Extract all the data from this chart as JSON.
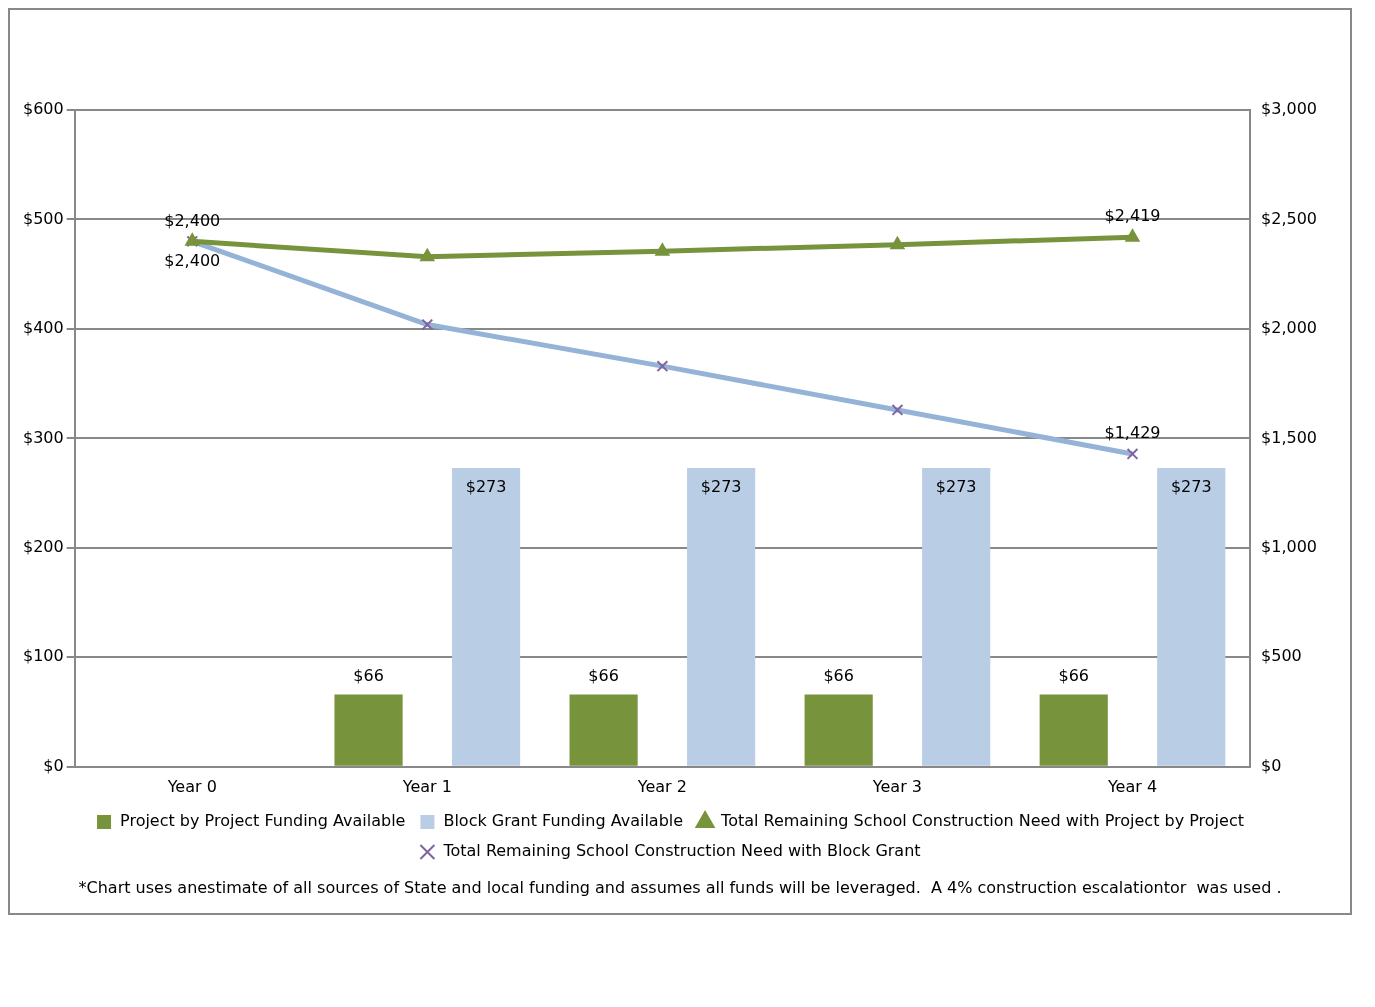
{
  "chart_data": {
    "type": "bar",
    "categories": [
      "Year 0",
      "Year 1",
      "Year 2",
      "Year 3",
      "Year 4"
    ],
    "series": [
      {
        "name": "Project by Project Funding Available",
        "color": "#77933c",
        "values": [
          null,
          66,
          66,
          66,
          66
        ],
        "value_labels": [
          null,
          "$66",
          "$66",
          "$66",
          "$66"
        ]
      },
      {
        "name": "Block Grant Funding Available",
        "color": "#b9cde5",
        "values": [
          null,
          273,
          273,
          273,
          273
        ],
        "value_labels": [
          null,
          "$273",
          "$273",
          "$273",
          "$273"
        ]
      },
      {
        "name": "Total Remaining School Construction Need with Project by Project",
        "type": "line",
        "axis": "y2",
        "marker": "triangle",
        "color": "#77933c",
        "values": [
          2400,
          2330,
          2355,
          2385,
          2419
        ],
        "value_labels": [
          "$2,400",
          null,
          null,
          null,
          "$2,419"
        ]
      },
      {
        "name": "Total Remaining School Construction Need with Block Grant",
        "type": "line",
        "axis": "y2",
        "marker": "cross",
        "color": "#95b3d7",
        "values": [
          2400,
          2020,
          1830,
          1630,
          1429
        ],
        "value_labels": [
          "$2,400",
          null,
          null,
          null,
          "$1,429"
        ]
      }
    ],
    "ylim": [
      0,
      600
    ],
    "yticks": [
      {
        "value": 0,
        "label": "$0"
      },
      {
        "value": 100,
        "label": "$100"
      },
      {
        "value": 200,
        "label": "$200"
      },
      {
        "value": 300,
        "label": "$300"
      },
      {
        "value": 400,
        "label": "$400"
      },
      {
        "value": 500,
        "label": "$500"
      },
      {
        "value": 600,
        "label": "$600"
      }
    ],
    "y2lim": [
      0,
      3000
    ],
    "y2ticks": [
      {
        "value": 0,
        "label": "$0"
      },
      {
        "value": 500,
        "label": "$500"
      },
      {
        "value": 1000,
        "label": "$1,000"
      },
      {
        "value": 1500,
        "label": "$1,500"
      },
      {
        "value": 2000,
        "label": "$2,000"
      },
      {
        "value": 2500,
        "label": "$2,500"
      },
      {
        "value": 3000,
        "label": "$3,000"
      }
    ],
    "grid": "y",
    "legend": "bottom",
    "annotations": [
      "*Chart uses anestimate of all sources of State and local funding and assumes all funds will be leveraged.  A 4% construction escalationtor  was used ."
    ]
  }
}
